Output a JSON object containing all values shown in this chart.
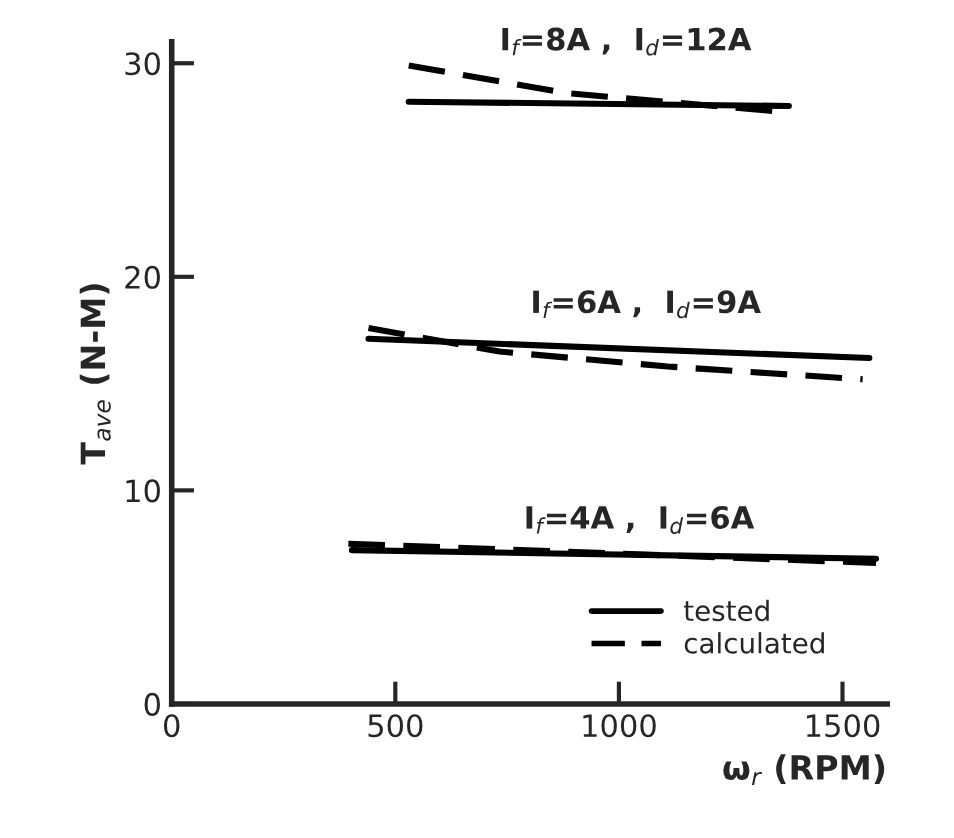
{
  "chart_data": {
    "type": "line",
    "xlabel": "ω$_{r}$ (RPM)",
    "ylabel": "T$_{ave}$ (N-M)",
    "xlim": [
      0,
      1600
    ],
    "ylim": [
      0,
      31
    ],
    "xticks": [
      0,
      500,
      1000,
      1500
    ],
    "yticks": [
      0,
      10,
      20,
      30
    ],
    "grid": false,
    "legend": "bottom right",
    "marker": "none",
    "series": [
      {
        "name": "tested",
        "color": "#000000",
        "line_style": "solid",
        "x": [
          530,
          1380
        ],
        "values": [
          28.2,
          28.0
        ]
      },
      {
        "name": "calculated",
        "color": "#000000",
        "line_style": "dashed",
        "x": [
          530,
          884,
          1380
        ],
        "values": [
          29.9,
          28.6,
          27.7
        ]
      },
      {
        "color": "#000000",
        "line_style": "solid",
        "x": [
          440,
          809,
          1560
        ],
        "values": [
          17.1,
          16.8,
          16.2
        ]
      },
      {
        "color": "#000000",
        "line_style": "dashed",
        "x": [
          440,
          733,
          1109,
          1545
        ],
        "values": [
          17.6,
          16.5,
          15.8,
          15.2
        ]
      },
      {
        "color": "#000000",
        "line_style": "solid",
        "x": [
          403,
          1575
        ],
        "values": [
          7.2,
          6.8
        ]
      },
      {
        "color": "#000000",
        "line_style": "dashed",
        "x": [
          395,
          1575
        ],
        "values": [
          7.5,
          6.6
        ]
      }
    ],
    "annotations": [
      "I$_{f}$=8A ,  I$_{d}$=12A",
      "I$_{f}$=6A ,  I$_{d}$=9A",
      "I$_{f}$=4A ,  I$_{d}$=6A"
    ]
  }
}
